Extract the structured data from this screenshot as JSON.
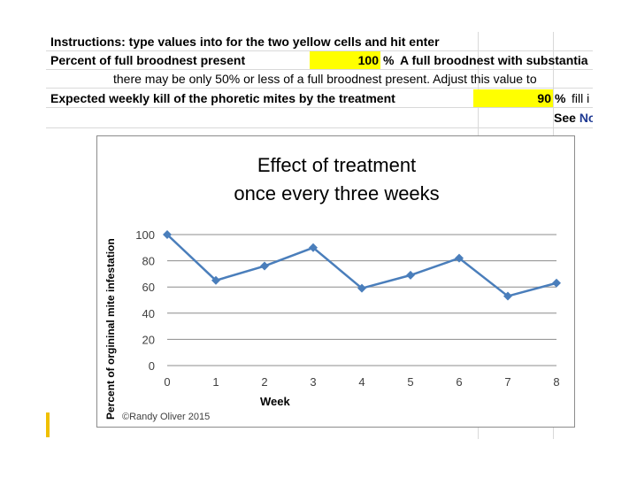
{
  "sheet": {
    "instructions": "Instructions: type values into for the two yellow cells and hit enter",
    "row1_label": "Percent of full broodnest present",
    "row1_value": "100",
    "row1_unit": "%",
    "row1_note": "A full broodnest with substantia",
    "row2_note": "there may be only 50% or less of a full broodnest present.  Adjust this value to",
    "row3_label": "Expected weekly kill of the phoretic mites by the treatment",
    "row3_value": "90",
    "row3_unit": "%",
    "row3_note": "fill i",
    "row4_see": "See",
    "row4_blue": "No"
  },
  "chart_data": {
    "type": "line",
    "title_line1": "Effect of treatment",
    "title_line2": "once every three weeks",
    "xlabel": "Week",
    "ylabel": "Percent of orgininal mite infestation",
    "x": [
      0,
      1,
      2,
      3,
      4,
      5,
      6,
      7,
      8
    ],
    "series": [
      {
        "values": [
          100,
          65,
          76,
          90,
          59,
          69,
          82,
          53,
          63
        ]
      }
    ],
    "xlim": [
      0,
      8
    ],
    "ylim": [
      0,
      100
    ],
    "yticks": [
      0,
      20,
      40,
      60,
      80,
      100
    ],
    "xticks": [
      0,
      1,
      2,
      3,
      4,
      5,
      6,
      7,
      8
    ],
    "grid": "horizontal",
    "line_color": "#4a7ebb",
    "credit": "©Randy Oliver 2015"
  }
}
